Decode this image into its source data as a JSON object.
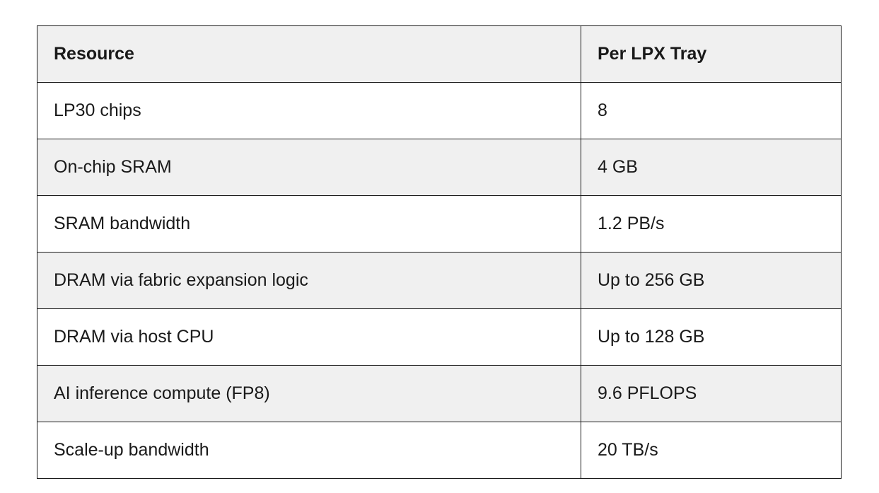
{
  "table": {
    "headers": [
      "Resource",
      "Per LPX Tray"
    ],
    "rows": [
      [
        "LP30 chips",
        "8"
      ],
      [
        "On-chip SRAM",
        "4 GB"
      ],
      [
        "SRAM bandwidth",
        "1.2 PB/s"
      ],
      [
        "DRAM via fabric expansion logic",
        "Up to 256 GB"
      ],
      [
        "DRAM via host CPU",
        "Up to 128 GB"
      ],
      [
        "AI inference compute (FP8)",
        "9.6 PFLOPS"
      ],
      [
        "Scale-up bandwidth",
        "20 TB/s"
      ]
    ]
  },
  "colors": {
    "header_bg": "#f0f0f0",
    "alt_row_bg": "#f0f0f0",
    "border": "#1a1a1a"
  }
}
